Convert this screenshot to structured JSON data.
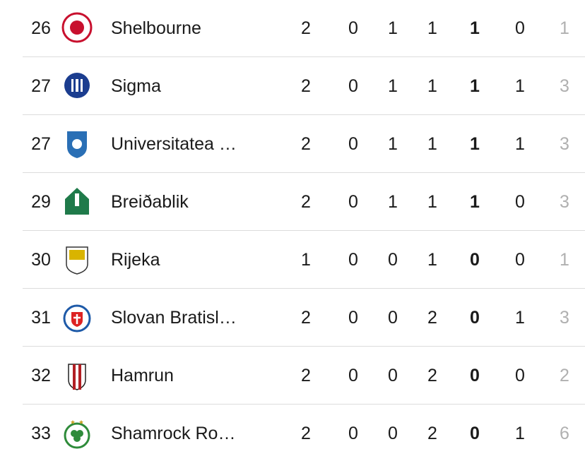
{
  "table": {
    "rows": [
      {
        "rank": 26,
        "team": "Shelbourne",
        "cells": [
          2,
          0,
          1,
          1,
          1,
          0,
          1
        ]
      },
      {
        "rank": 27,
        "team": "Sigma",
        "cells": [
          2,
          0,
          1,
          1,
          1,
          1,
          3
        ]
      },
      {
        "rank": 27,
        "team": "Universitatea …",
        "cells": [
          2,
          0,
          1,
          1,
          1,
          1,
          3
        ]
      },
      {
        "rank": 29,
        "team": "Breiðablik",
        "cells": [
          2,
          0,
          1,
          1,
          1,
          0,
          3
        ]
      },
      {
        "rank": 30,
        "team": "Rijeka",
        "cells": [
          1,
          0,
          0,
          1,
          0,
          0,
          1
        ]
      },
      {
        "rank": 31,
        "team": "Slovan Bratisl…",
        "cells": [
          2,
          0,
          0,
          2,
          0,
          1,
          3
        ]
      },
      {
        "rank": 32,
        "team": "Hamrun",
        "cells": [
          2,
          0,
          0,
          2,
          0,
          0,
          2
        ]
      },
      {
        "rank": 33,
        "team": "Shamrock Ro…",
        "cells": [
          2,
          0,
          0,
          2,
          0,
          1,
          6
        ]
      }
    ]
  }
}
